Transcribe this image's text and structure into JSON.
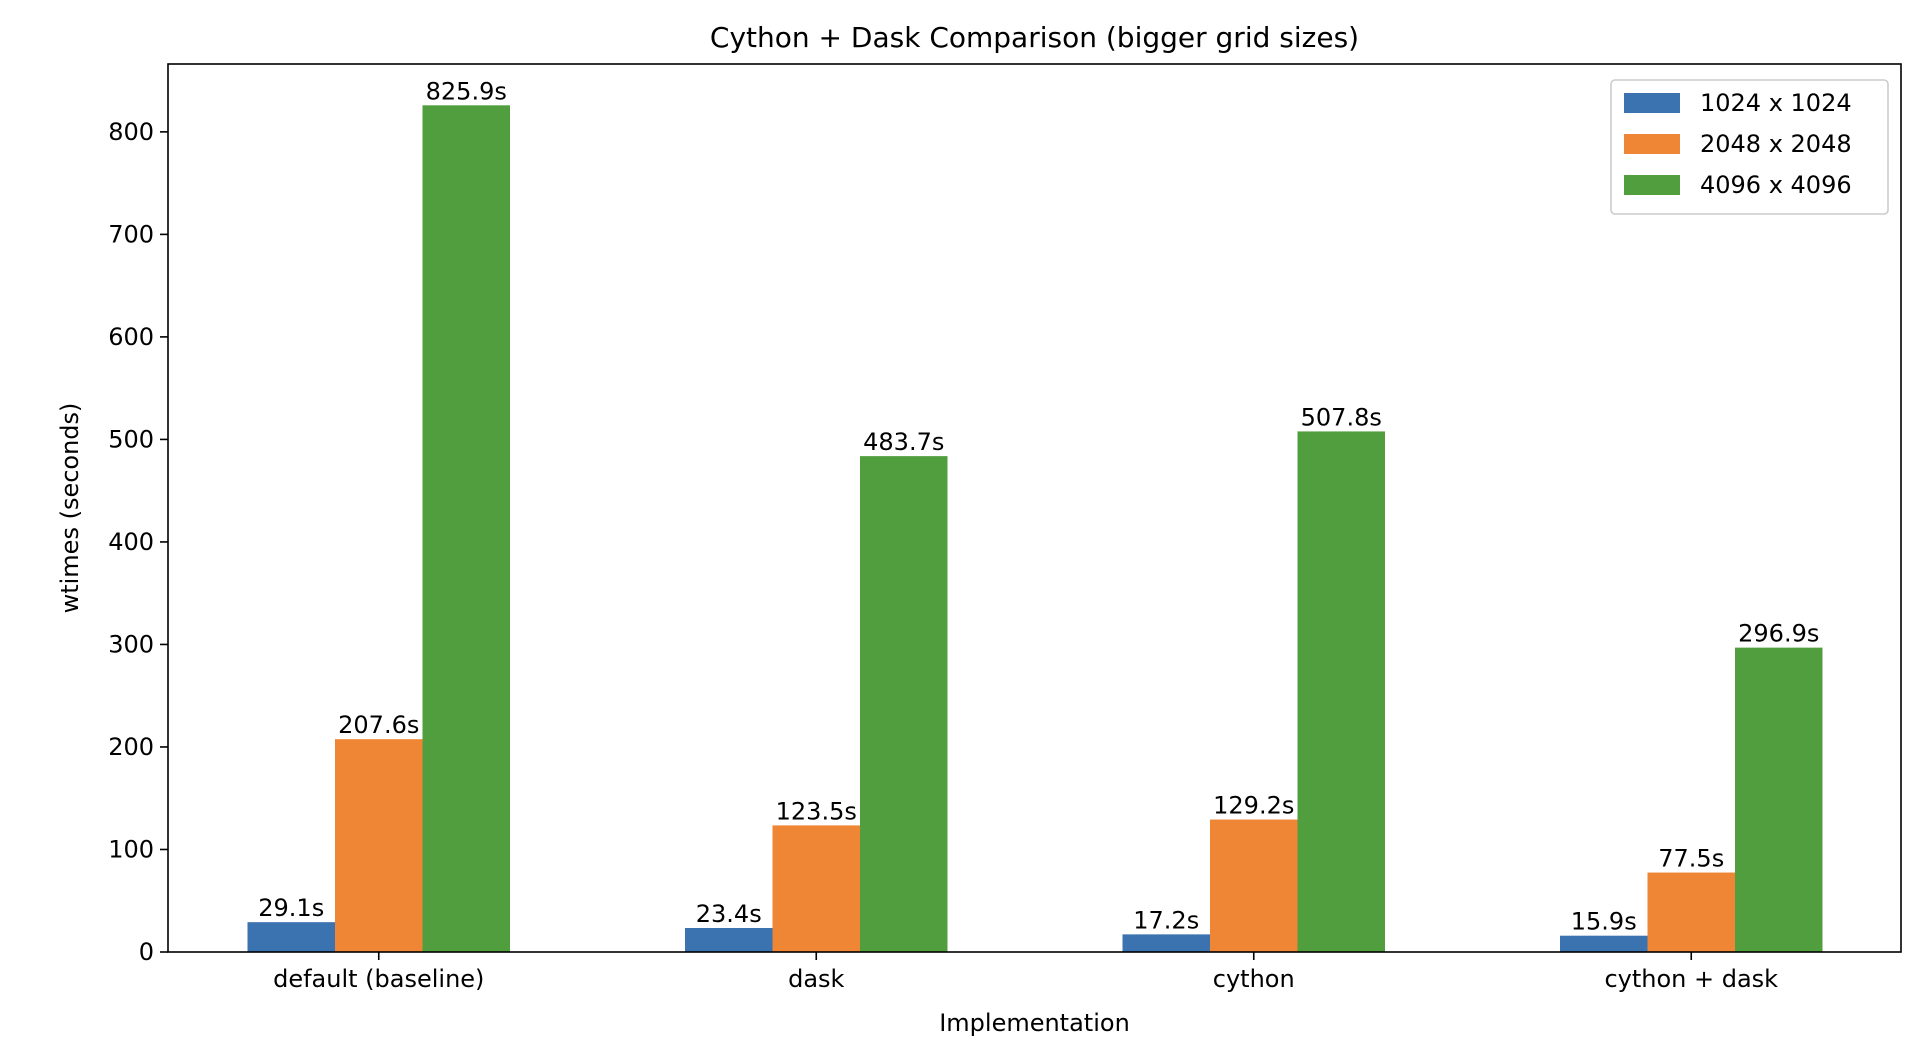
{
  "chart_data": {
    "type": "bar",
    "title": "Cython + Dask Comparison (bigger grid sizes)",
    "xlabel": "Implementation",
    "ylabel": "wtimes (seconds)",
    "ylim": [
      0,
      866.2
    ],
    "yticks": [
      0,
      100,
      200,
      300,
      400,
      500,
      600,
      700,
      800
    ],
    "categories": [
      "default (baseline)",
      "dask",
      "cython",
      "cython + dask"
    ],
    "series": [
      {
        "name": "1024 x 1024",
        "color": "#3b73b0",
        "values": [
          29.1,
          23.4,
          17.2,
          15.9
        ],
        "labels": [
          "29.1s",
          "23.4s",
          "17.2s",
          "15.9s"
        ]
      },
      {
        "name": "2048 x 2048",
        "color": "#ef8636",
        "values": [
          207.6,
          123.5,
          129.2,
          77.5
        ],
        "labels": [
          "207.6s",
          "123.5s",
          "129.2s",
          "77.5s"
        ]
      },
      {
        "name": "4096 x 4096",
        "color": "#519e3e",
        "values": [
          825.9,
          483.7,
          507.8,
          296.9
        ],
        "labels": [
          "825.9s",
          "483.7s",
          "507.8s",
          "296.9s"
        ]
      }
    ],
    "legend": "top-right",
    "grid": false
  }
}
